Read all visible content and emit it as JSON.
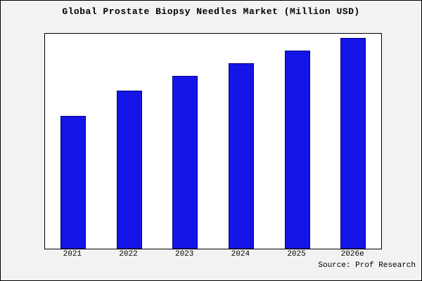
{
  "chart_data": {
    "type": "bar",
    "title": "Global Prostate Biopsy Needles Market (Million USD)",
    "categories": [
      "2021",
      "2022",
      "2023",
      "2024",
      "2025",
      "2026e"
    ],
    "values": [
      63,
      75,
      82,
      88,
      94,
      100
    ],
    "xlabel": "",
    "ylabel": "",
    "ylim": [
      0,
      102
    ],
    "grid": false,
    "legend": "none",
    "bar_fill_color": "#1414E6",
    "bar_border_color": "#00008B",
    "plot_background": "#ffffff",
    "outer_background": "#f2f2f2"
  },
  "source_note": "Source: Prof Research"
}
